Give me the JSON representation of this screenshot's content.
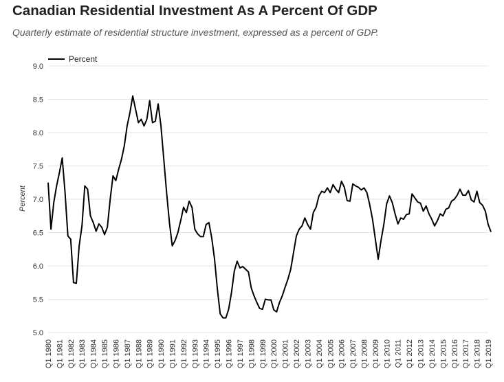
{
  "title": "Canadian Residential Investment As A Percent Of GDP",
  "subtitle": "Quarterly estimate of residential structure investment, expressed as a percent of GDP.",
  "chart_data": {
    "type": "line",
    "title": "Canadian Residential Investment As A Percent Of GDP",
    "subtitle": "Quarterly estimate of residential structure investment, expressed as a percent of GDP.",
    "xlabel": "",
    "ylabel": "Percent",
    "ylim": [
      5.0,
      9.0
    ],
    "yticks": [
      "5.0",
      "5.5",
      "6.0",
      "6.5",
      "7.0",
      "7.5",
      "8.0",
      "8.5",
      "9.0"
    ],
    "xticks": [
      "Q1 1980",
      "Q1 1981",
      "Q1 1982",
      "Q1 1983",
      "Q1 1984",
      "Q1 1985",
      "Q1 1986",
      "Q1 1987",
      "Q1 1988",
      "Q1 1989",
      "Q1 1990",
      "Q1 1991",
      "Q1 1992",
      "Q1 1993",
      "Q1 1994",
      "Q1 1995",
      "Q1 1996",
      "Q1 1997",
      "Q1 1998",
      "Q1 1999",
      "Q1 2000",
      "Q1 2001",
      "Q1 2002",
      "Q1 2003",
      "Q1 2004",
      "Q1 2005",
      "Q1 2006",
      "Q1 2007",
      "Q1 2008",
      "Q1 2009",
      "Q1 2010",
      "Q1 2011",
      "Q1 2012",
      "Q1 2013",
      "Q1 2014",
      "Q1 2015",
      "Q1 2016",
      "Q1 2017",
      "Q1 2018",
      "Q1 2019"
    ],
    "grid": true,
    "legend_position": "top-left",
    "series": [
      {
        "name": "Percent",
        "color": "#000000",
        "start": "Q1 1980",
        "values": [
          7.25,
          6.55,
          6.95,
          7.2,
          7.4,
          7.62,
          7.1,
          6.45,
          6.4,
          5.75,
          5.74,
          6.3,
          6.6,
          7.2,
          7.15,
          6.75,
          6.65,
          6.52,
          6.63,
          6.58,
          6.47,
          6.58,
          7.0,
          7.35,
          7.28,
          7.45,
          7.6,
          7.8,
          8.1,
          8.3,
          8.55,
          8.35,
          8.15,
          8.2,
          8.1,
          8.2,
          8.48,
          8.15,
          8.17,
          8.43,
          8.1,
          7.6,
          7.1,
          6.65,
          6.3,
          6.38,
          6.5,
          6.68,
          6.88,
          6.8,
          6.97,
          6.88,
          6.55,
          6.48,
          6.44,
          6.44,
          6.62,
          6.65,
          6.42,
          6.1,
          5.65,
          5.28,
          5.22,
          5.22,
          5.35,
          5.6,
          5.92,
          6.07,
          5.97,
          5.99,
          5.95,
          5.91,
          5.67,
          5.55,
          5.45,
          5.36,
          5.35,
          5.5,
          5.49,
          5.49,
          5.34,
          5.31,
          5.45,
          5.55,
          5.68,
          5.8,
          5.95,
          6.2,
          6.45,
          6.55,
          6.6,
          6.72,
          6.62,
          6.55,
          6.8,
          6.88,
          7.05,
          7.12,
          7.1,
          7.17,
          7.1,
          7.22,
          7.15,
          7.1,
          7.27,
          7.18,
          6.98,
          6.97,
          7.23,
          7.2,
          7.18,
          7.14,
          7.17,
          7.1,
          6.92,
          6.7,
          6.4,
          6.1,
          6.38,
          6.62,
          6.93,
          7.05,
          6.95,
          6.78,
          6.63,
          6.72,
          6.7,
          6.77,
          6.78,
          7.08,
          7.02,
          6.96,
          6.94,
          6.82,
          6.9,
          6.78,
          6.7,
          6.6,
          6.68,
          6.78,
          6.75,
          6.85,
          6.87,
          6.97,
          7.0,
          7.06,
          7.15,
          7.06,
          7.06,
          7.13,
          6.99,
          6.96,
          7.12,
          6.95,
          6.91,
          6.82,
          6.62,
          6.51
        ]
      }
    ]
  }
}
